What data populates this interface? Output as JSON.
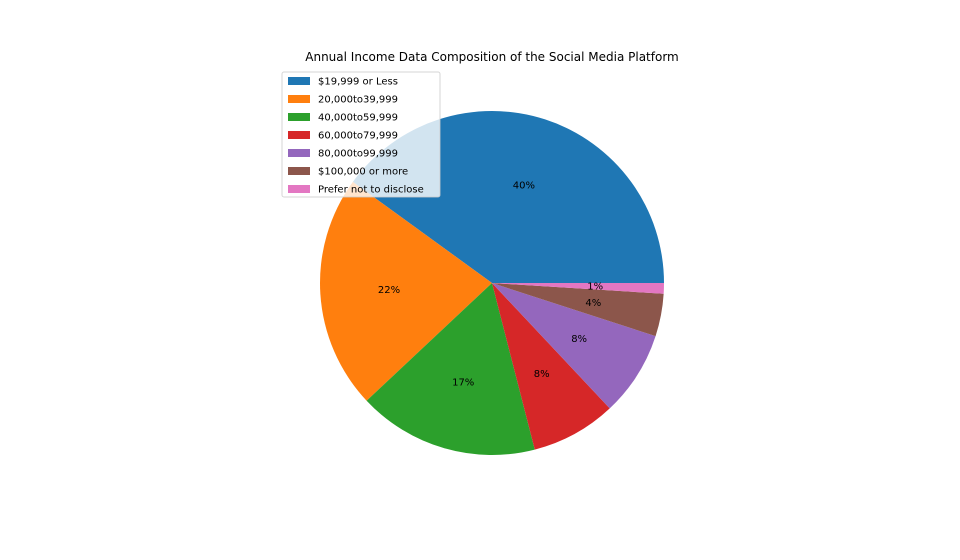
{
  "chart_data": {
    "type": "pie",
    "title": "Annual Income Data Composition of the Social Media Platform",
    "categories": [
      "$19,999 or Less",
      "20,000to39,999",
      "40,000to59,999",
      "60,000to79,999",
      "80,000to99,999",
      "$100,000 or more",
      "Prefer not to disclose"
    ],
    "values": [
      40,
      22,
      17,
      8,
      8,
      4,
      1
    ],
    "labels": [
      "40%",
      "22%",
      "17%",
      "8%",
      "8%",
      "4%",
      "1%"
    ],
    "colors": [
      "#1f77b4",
      "#ff7f0e",
      "#2ca02c",
      "#d62728",
      "#9467bd",
      "#8c564b",
      "#e377c2"
    ],
    "start_angle_deg": 0,
    "direction": "counterclockwise",
    "legend_position": "upper-left"
  }
}
